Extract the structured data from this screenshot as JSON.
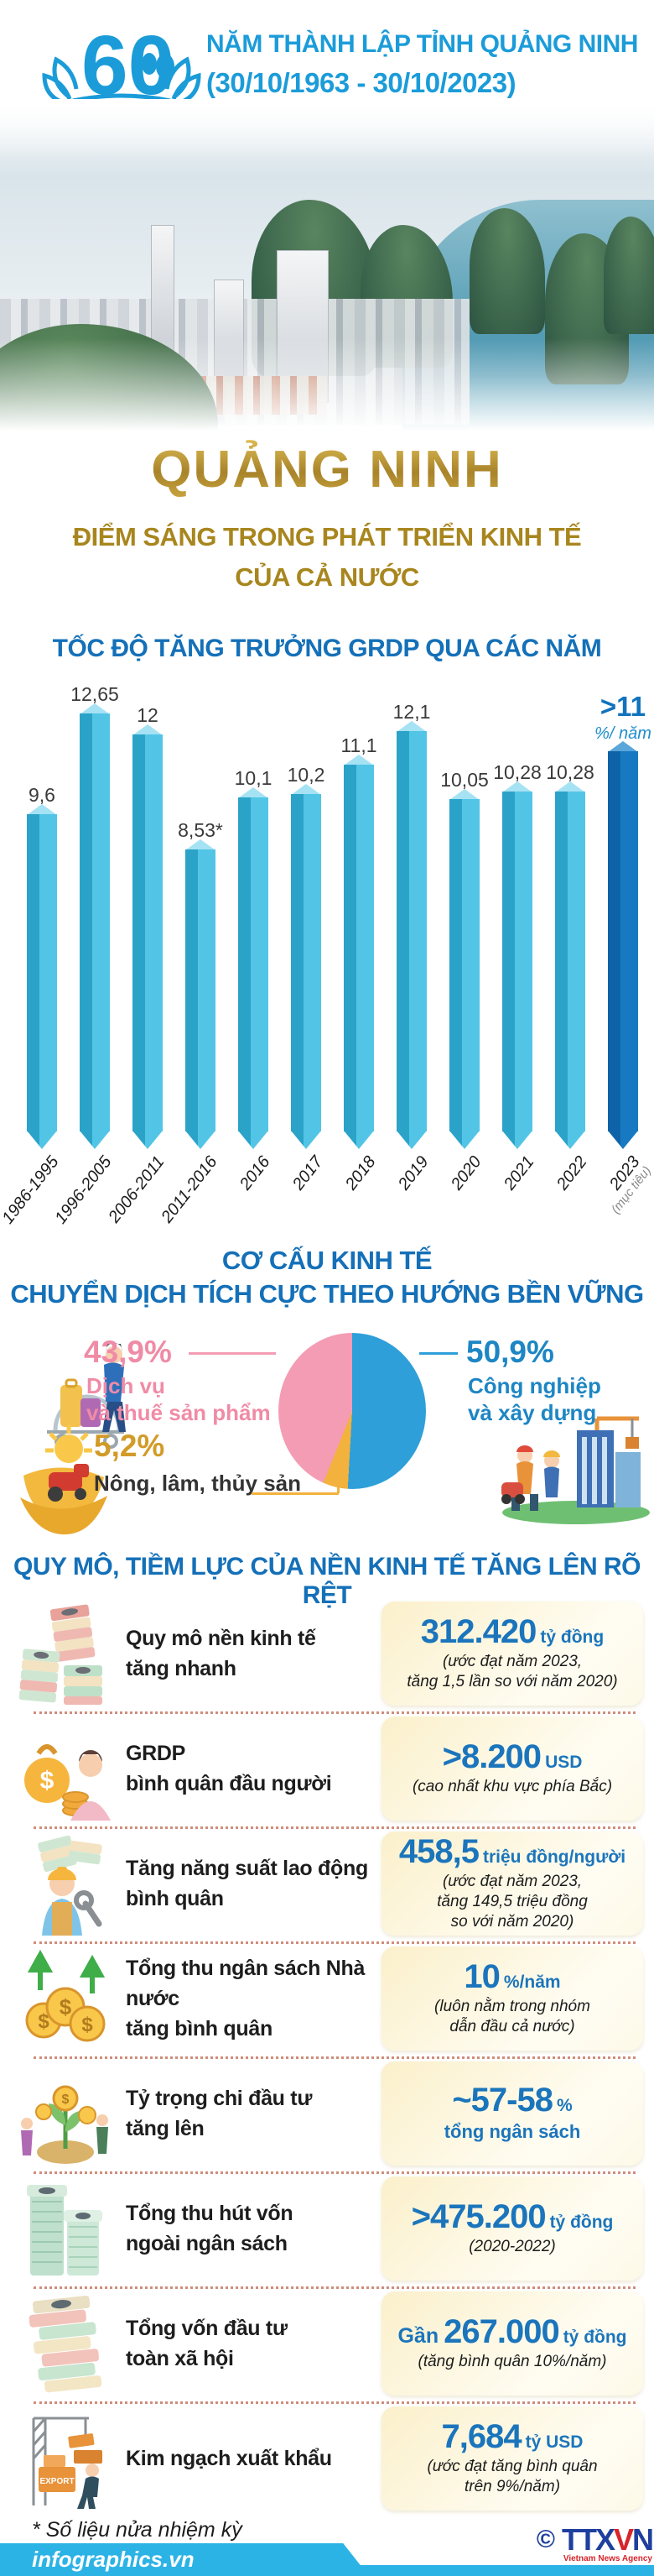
{
  "header": {
    "logo_number": "60",
    "title_line1": "NĂM THÀNH LẬP TỈNH QUẢNG NINH",
    "title_line2": "(30/10/1963 - 30/10/2023)"
  },
  "hero": {
    "title": "QUẢNG NINH",
    "subtitle_line1": "ĐIỂM SÁNG TRONG PHÁT TRIỂN KINH TẾ",
    "subtitle_line2": "CỦA CẢ NƯỚC"
  },
  "chart_data": [
    {
      "type": "bar",
      "title": "TỐC ĐỘ TĂNG TRƯỞNG GRDP QUA CÁC NĂM",
      "ylabel": "%",
      "ylim": [
        0,
        14
      ],
      "grid": false,
      "categories": [
        "1986-1995",
        "1996-2005",
        "2006-2011",
        "2011-2016",
        "2016",
        "2017",
        "2018",
        "2019",
        "2020",
        "2021",
        "2022",
        "2023"
      ],
      "values": [
        9.6,
        12.65,
        12,
        8.53,
        10.1,
        10.2,
        11.1,
        12.1,
        10.05,
        10.28,
        10.28,
        11
      ],
      "value_labels": [
        "9,6",
        "12,65",
        "12",
        "8,53*",
        "10,1",
        "10,2",
        "11,1",
        "12,1",
        "10,05",
        "10,28",
        "10,28",
        ">11"
      ],
      "highlight_index": 11,
      "highlight_label": ">11",
      "highlight_unit": "%/ năm",
      "highlight_display_value": 11.5,
      "last_category_note": "(mục tiêu)",
      "bar_color": "#52c5e6",
      "bar_color_dark": "#2ba3c9",
      "highlight_color": "#1173bd"
    },
    {
      "type": "pie",
      "title": "CƠ CẤU KINH TẾ CHUYỂN DỊCH TÍCH CỰC THEO HƯỚNG BỀN VỮNG",
      "slices": [
        {
          "label": "Công nghiệp và xây dựng",
          "value": 50.9,
          "color": "#2e9fd9"
        },
        {
          "label": "Nông, lâm, thủy sản",
          "value": 5.2,
          "color": "#f2b23d"
        },
        {
          "label": "Dịch vụ và thuế sản phẩm",
          "value": 43.9,
          "color": "#f49cb4"
        }
      ],
      "legend_position": "sides"
    }
  ],
  "pie_section": {
    "title_line1": "CƠ CẤU KINH TẾ",
    "title_line2": "CHUYỂN DỊCH TÍCH CỰC THEO HƯỚNG BỀN VỮNG",
    "service": {
      "pct": "43,9%",
      "line1": "Dịch vụ",
      "line2": "và thuế sản phẩm",
      "color": "#f08ba6"
    },
    "industry": {
      "pct": "50,9%",
      "line1": "Công nghiệp",
      "line2": "và xây dựng",
      "color": "#1d86c4"
    },
    "agriculture": {
      "pct": "5,2%",
      "line1": "Nông, lâm, thủy sản",
      "pct_color": "#d29b28",
      "label_color": "#333333"
    }
  },
  "stats": {
    "title": "QUY MÔ, TIỀM LỰC CỦA NỀN KINH TẾ TĂNG LÊN RÕ RỆT",
    "rows": [
      {
        "icon": "money-stack-icon",
        "label": "Quy mô nền kinh tế\ntăng nhanh",
        "value": "312.420",
        "unit": "tỷ đồng",
        "sub": "(ước đạt năm 2023,\ntăng 1,5 lần so với năm 2020)"
      },
      {
        "icon": "income-person-icon",
        "label": "GRDP\nbình quân đầu người",
        "value": ">8.200",
        "unit": "USD",
        "sub": "(cao nhất khu vực phía Bắc)"
      },
      {
        "icon": "worker-productivity-icon",
        "label": "Tăng năng suất lao động\nbình quân",
        "value": "458,5",
        "unit": "triệu đồng/người",
        "sub": "(ước đạt năm 2023,\ntăng 149,5 triệu đồng\nso với năm 2020)"
      },
      {
        "icon": "budget-coins-icon",
        "label": "Tổng thu ngân sách Nhà nước\ntăng bình quân",
        "value": "10",
        "unit": "%/năm",
        "sub": "(luôn nằm trong nhóm\ndẫn đầu cả nước)"
      },
      {
        "icon": "investment-plant-icon",
        "label": "Tỷ trọng chi đầu tư\ntăng lên",
        "value": "~57-58",
        "unit": "%",
        "sub": "tổng ngân sách",
        "sub_style": "blue"
      },
      {
        "icon": "capital-stack-icon",
        "label": "Tổng thu hút vốn\nngoài ngân sách",
        "value": ">475.200",
        "unit": "tỷ đồng",
        "sub": "(2020-2022)"
      },
      {
        "icon": "investment-bundle-icon",
        "label": "Tổng vốn đầu tư\ntoàn xã hội",
        "value_prefix": "Gần",
        "value": "267.000",
        "unit": "tỷ đồng",
        "sub": "(tăng bình quân 10%/năm)"
      },
      {
        "icon": "export-crane-icon",
        "label": "Kim ngạch xuất khẩu",
        "value": "7,684",
        "unit": "tỷ USD",
        "sub": "(ước đạt tăng bình quân\ntrên 9%/năm)"
      }
    ]
  },
  "footer": {
    "footnote": "* Số liệu nửa nhiệm kỳ",
    "site": "infographics.vn",
    "copyright": "©",
    "agency_part1": "TTX",
    "agency_part2": "V",
    "agency_part3": "N",
    "agency_sub": "Vietnam News Agency"
  }
}
